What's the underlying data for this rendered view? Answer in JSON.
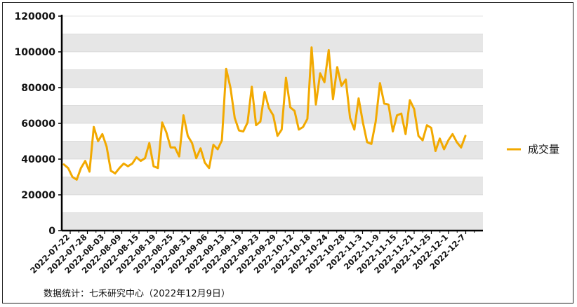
{
  "chart_data": {
    "type": "line",
    "y_ticks": [
      0,
      20000,
      40000,
      60000,
      80000,
      100000,
      120000
    ],
    "y_tick_labels": [
      "0",
      "20000",
      "40000",
      "60000",
      "80000",
      "100000",
      "120000"
    ],
    "ylim": [
      0,
      120000
    ],
    "grid": "horizontal bands",
    "legend_position": "right",
    "x_tick_labels": [
      "2022-07-22",
      "2022-07-28",
      "2022-08-03",
      "2022-08-09",
      "2022-08-15",
      "2022-08-19",
      "2022-08-25",
      "2022-08-31",
      "2022-09-06",
      "2022-09-13",
      "2022-09-19",
      "2022-09-23",
      "2022-09-29",
      "2022-10-12",
      "2022-10-18",
      "2022-10-24",
      "2022-10-28",
      "2022-11-3",
      "2022-11-9",
      "2022-11-15",
      "2022-11-21",
      "2022-11-25",
      "2022-12-1",
      "2022-12-7"
    ],
    "series": [
      {
        "name": "成交量",
        "color": "#F2A900",
        "values": [
          37000,
          35000,
          30000,
          28500,
          35000,
          39000,
          33000,
          58000,
          50000,
          54000,
          47000,
          33500,
          32000,
          35000,
          37500,
          36000,
          37500,
          41000,
          39000,
          40500,
          49000,
          36000,
          35000,
          60500,
          55000,
          46500,
          46500,
          41500,
          64500,
          53000,
          49000,
          40500,
          46000,
          38000,
          35000,
          48000,
          45500,
          50500,
          90500,
          80000,
          63000,
          56000,
          55500,
          60500,
          80500,
          59000,
          61000,
          77500,
          68500,
          64500,
          53000,
          56500,
          85500,
          69000,
          67000,
          56500,
          58000,
          62500,
          102500,
          70500,
          88000,
          83000,
          101000,
          73500,
          91500,
          81000,
          84500,
          63000,
          56500,
          74000,
          60500,
          49500,
          48500,
          61000,
          82500,
          71000,
          70500,
          55500,
          64500,
          65500,
          54000,
          73000,
          68000,
          53000,
          50500,
          59000,
          57500,
          44500,
          51500,
          45500,
          50500,
          54000,
          49500,
          46500,
          53000
        ]
      }
    ]
  },
  "legend": {
    "label": "成交量"
  },
  "source_text": "数据统计：七禾研究中心（2022年12月9日）",
  "colors": {
    "line": "#F2A900",
    "band": "#E6E6E6",
    "axis": "#000000"
  }
}
